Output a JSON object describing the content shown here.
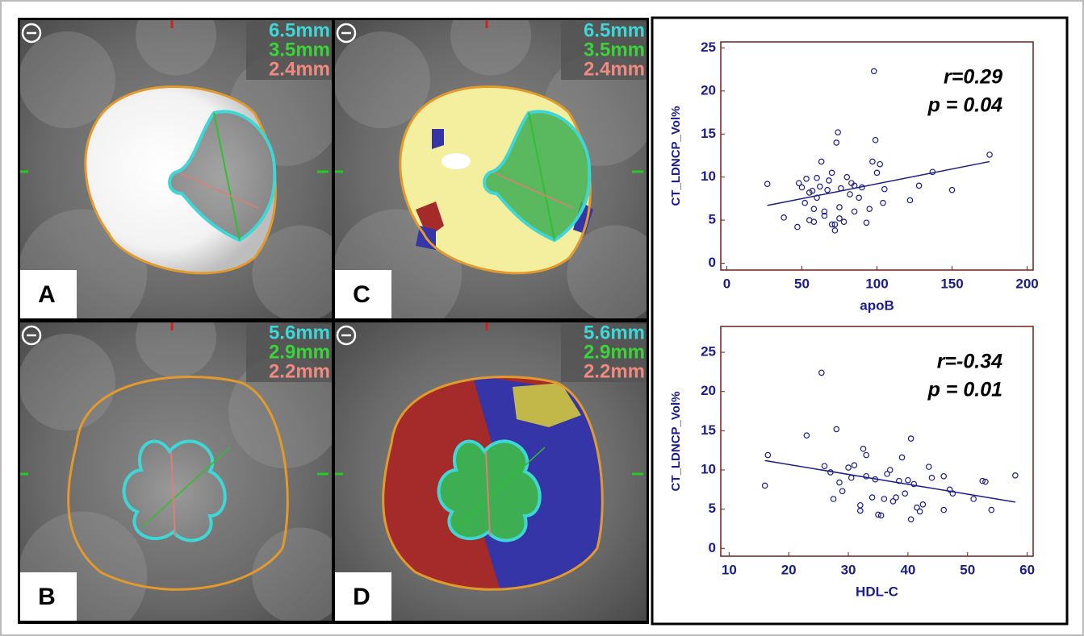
{
  "panels": [
    {
      "label": "A",
      "measurements": [
        "6.5mm",
        "3.5mm",
        "2.4mm"
      ]
    },
    {
      "label": "C",
      "measurements": [
        "6.5mm",
        "3.5mm",
        "2.4mm"
      ]
    },
    {
      "label": "B",
      "measurements": [
        "5.6mm",
        "2.9mm",
        "2.2mm"
      ]
    },
    {
      "label": "D",
      "measurements": [
        "5.6mm",
        "2.9mm",
        "2.2mm"
      ]
    }
  ],
  "chart_data": [
    {
      "type": "scatter",
      "xlabel": "apoB",
      "ylabel": "CT_LDNCP_Vol%",
      "annotations": [
        "r=0.29",
        "p = 0.04"
      ],
      "color": "#1c1c8a",
      "frame_color": "#6e1f1f",
      "x": [
        27,
        38,
        47,
        48,
        50,
        52,
        53,
        55,
        55,
        57,
        58,
        58,
        60,
        60,
        62,
        63,
        65,
        65,
        67,
        68,
        70,
        70,
        72,
        72,
        73,
        74,
        75,
        75,
        76,
        78,
        80,
        82,
        83,
        85,
        85,
        88,
        90,
        93,
        95,
        97,
        98,
        99,
        100,
        102,
        104,
        105,
        122,
        128,
        137,
        150,
        175
      ],
      "values": [
        9.2,
        5.3,
        4.2,
        9.3,
        8.8,
        7.0,
        9.8,
        5.0,
        8.2,
        8.4,
        6.3,
        4.8,
        7.6,
        9.9,
        8.9,
        11.8,
        6.0,
        5.5,
        8.5,
        9.6,
        10.5,
        4.5,
        3.8,
        4.5,
        14,
        15.2,
        5.2,
        6.5,
        8.7,
        4.8,
        10.0,
        8.0,
        9.3,
        6.0,
        9.0,
        7.6,
        8.8,
        4.7,
        6.3,
        11.8,
        22.3,
        14.3,
        10.5,
        11.5,
        7.0,
        8.6,
        7.3,
        9.0,
        10.6,
        8.5,
        12.6
      ],
      "trend_line": {
        "x": [
          27,
          175
        ],
        "values": [
          6.7,
          11.8
        ]
      },
      "xlim": [
        -4,
        204
      ],
      "ylim": [
        -0.8,
        25.7
      ],
      "xticks": [
        0,
        50,
        100,
        150,
        200
      ],
      "yticks": [
        0,
        5,
        10,
        15,
        20,
        25
      ]
    },
    {
      "type": "scatter",
      "xlabel": "HDL-C",
      "ylabel": "CT_LDNCP_Vol%",
      "annotations": [
        "r=-0.34",
        "p = 0.01"
      ],
      "color": "#1c1c8a",
      "frame_color": "#6e1f1f",
      "x": [
        16,
        16.5,
        23,
        25.5,
        26,
        27,
        27.5,
        28,
        28.5,
        29,
        30,
        30.5,
        31,
        32,
        32,
        32.5,
        33,
        33,
        34,
        34.5,
        35,
        35.5,
        36,
        36.5,
        37,
        37.5,
        38,
        38.5,
        39,
        39.5,
        40,
        40.5,
        40.5,
        41,
        41.5,
        42,
        42.5,
        43.5,
        44,
        46,
        46,
        47,
        47.5,
        51,
        52.5,
        53,
        54,
        58
      ],
      "values": [
        8.0,
        11.9,
        14.4,
        22.4,
        10.5,
        9.7,
        6.3,
        15.2,
        8.4,
        7.3,
        10.3,
        9.0,
        10.6,
        5.5,
        4.8,
        12.7,
        11.9,
        9.2,
        6.5,
        8.8,
        4.3,
        4.2,
        6.3,
        9.5,
        10.0,
        6.0,
        6.5,
        8.6,
        11.6,
        7.0,
        8.7,
        3.7,
        14.0,
        8.2,
        5.2,
        4.7,
        5.6,
        10.4,
        9.0,
        4.9,
        9.2,
        7.5,
        7.0,
        6.3,
        8.6,
        8.5,
        4.9,
        9.3
      ],
      "trend_line": {
        "x": [
          16,
          58
        ],
        "values": [
          11.2,
          5.9
        ]
      },
      "xlim": [
        8.6,
        61
      ],
      "ylim": [
        -1,
        28.3
      ],
      "xticks": [
        10,
        20,
        30,
        40,
        50,
        60
      ],
      "yticks": [
        0,
        5,
        10,
        15,
        20,
        25
      ]
    }
  ]
}
